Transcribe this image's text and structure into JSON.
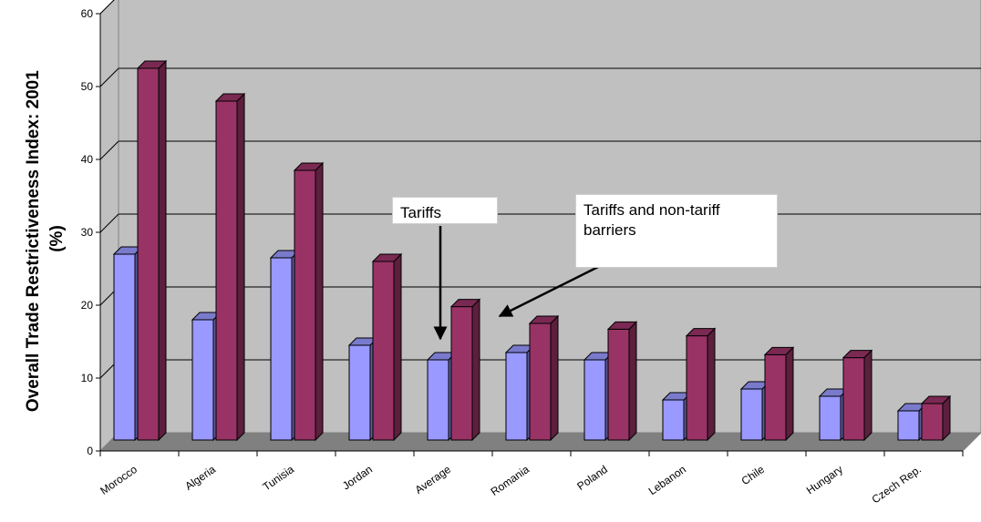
{
  "chart_data": {
    "type": "bar",
    "ylabel": "Overall Trade Restrictiveness Index: 2001 (%)",
    "ylabel_lines": [
      "Overall Trade Restrictiveness Index: 2001",
      "(%)"
    ],
    "ylim": [
      0,
      60
    ],
    "yticks": [
      0,
      10,
      20,
      30,
      40,
      50,
      60
    ],
    "categories": [
      "Morocco",
      "Algeria",
      "Tunisia",
      "Jordan",
      "Average",
      "Romania",
      "Poland",
      "Lebanon",
      "Chile",
      "Hungary",
      "Czech Rep."
    ],
    "series": [
      {
        "values": [
          25.5,
          16.5,
          25,
          13,
          11,
          12,
          11,
          5.5,
          7,
          6,
          4
        ]
      },
      {
        "values": [
          51,
          46.5,
          37,
          24.5,
          18.3,
          16,
          15.2,
          14.3,
          11.7,
          11.3,
          5
        ]
      }
    ],
    "colors": [
      "#9999ff",
      "#993366"
    ],
    "grid": true,
    "annotations": [
      {
        "id": "tariffs",
        "text": "Tariffs"
      },
      {
        "id": "ntb",
        "text": "Tariffs and non-tariff barriers"
      }
    ]
  },
  "colors": {
    "wall": "#c0c0c0",
    "floor": "#808080",
    "gridline": "#000000"
  }
}
